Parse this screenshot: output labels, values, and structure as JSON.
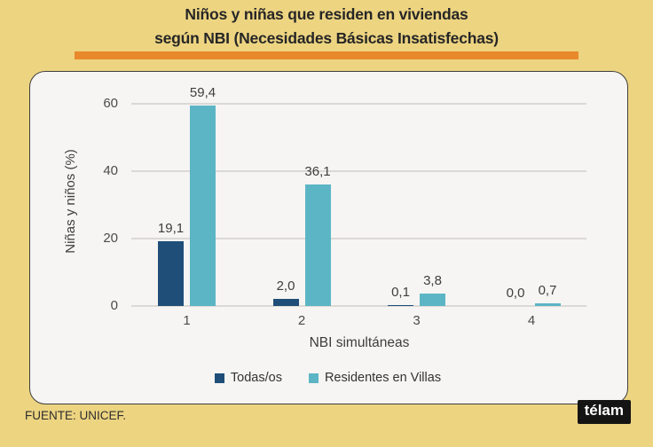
{
  "page": {
    "title_line1": "Niños y niñas que residen en viviendas",
    "title_line2": "según NBI (Necesidades Básicas Insatisfechas)",
    "accent_rule_color": "#e8892c",
    "background_color": "#edd481",
    "source": "FUENTE: UNICEF.",
    "logo_text": "télam"
  },
  "chart_data": {
    "type": "bar",
    "title": "Niños y niñas que residen en viviendas según NBI (Necesidades Básicas Insatisfechas)",
    "xlabel": "NBI simultáneas",
    "ylabel": "Niñas y niños (%)",
    "categories": [
      "1",
      "2",
      "3",
      "4"
    ],
    "yticks": [
      0,
      20,
      40,
      60
    ],
    "ylim": [
      0,
      63
    ],
    "grid": true,
    "legend_position": "bottom",
    "series": [
      {
        "name": "Todas/os",
        "color": "#1f4e79",
        "values": [
          19.1,
          2.0,
          0.1,
          0.0
        ],
        "labels": [
          "19,1",
          "2,0",
          "0,1",
          "0,0"
        ]
      },
      {
        "name": "Residentes en Villas",
        "color": "#5cb5c5",
        "values": [
          59.4,
          36.1,
          3.8,
          0.7
        ],
        "labels": [
          "59,4",
          "36,1",
          "3,8",
          "0,7"
        ]
      }
    ]
  }
}
